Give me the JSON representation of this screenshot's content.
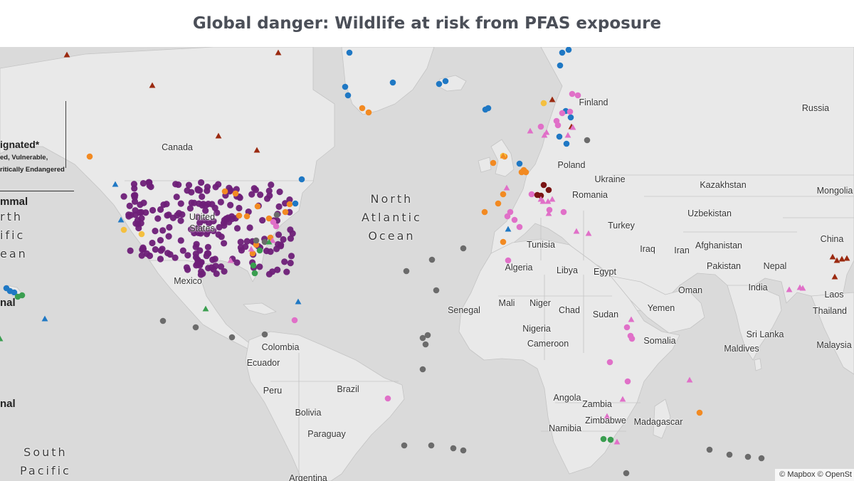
{
  "title": "Global danger: Wildlife at risk from PFAS exposure",
  "legend": {
    "line1": "ignated*",
    "line2": "ed, Vulnerable,",
    "line3": "ritically Endangered"
  },
  "side_labels": [
    "mmal",
    "nal",
    "nal"
  ],
  "attribution": "© Mapbox © OpenSt",
  "colors": {
    "land": "#e9e9e9",
    "water": "#dadada",
    "border": "#c4c4c4",
    "purple": "#6e1f78",
    "orange": "#f28a22",
    "blue": "#1f78c4",
    "pink": "#e070c8",
    "green": "#3a9e50",
    "darkred": "#9b2a10",
    "gray": "#6b6b6b",
    "yellow": "#f4c040",
    "maroon": "#7a1414",
    "teal": "#4fa39a"
  },
  "labels": {
    "canada": "Canada",
    "us_a": "United",
    "us_b": "States",
    "mexico": "Mexico",
    "finland": "Finland",
    "russia": "Russia",
    "poland": "Poland",
    "ukraine": "Ukraine",
    "romania": "Romania",
    "turkey": "Turkey",
    "kazakhstan": "Kazakhstan",
    "mongolia": "Mongolia",
    "uzbekistan": "Uzbekistan",
    "china": "China",
    "afghanistan": "Afghanistan",
    "iraq": "Iraq",
    "iran": "Iran",
    "pakistan": "Pakistan",
    "nepal": "Nepal",
    "tunisia": "Tunisia",
    "algeria": "Algeria",
    "libya": "Libya",
    "egypt": "Egypt",
    "oman": "Oman",
    "india": "India",
    "laos": "Laos",
    "thailand": "Thailand",
    "mali": "Mali",
    "niger": "Niger",
    "chad": "Chad",
    "sudan": "Sudan",
    "yemen": "Yemen",
    "senegal": "Senegal",
    "nigeria": "Nigeria",
    "somalia": "Somalia",
    "srilanka": "Sri Lanka",
    "maldives": "Maldives",
    "malaysia": "Malaysia",
    "cameroon": "Cameroon",
    "colombia": "Colombia",
    "ecuador": "Ecuador",
    "brazil": "Brazil",
    "peru": "Peru",
    "bolivia": "Bolivia",
    "paraguay": "Paraguay",
    "argentina": "Argentina",
    "angola": "Angola",
    "zambia": "Zambia",
    "zimbabwe": "Zimbabwe",
    "namibia": "Namibia",
    "madagascar": "Madagascar"
  },
  "oceans": {
    "north_atlantic": [
      "North",
      "Atlantic",
      "Ocean"
    ],
    "north_pacific": [
      "rth",
      "ific",
      "ean"
    ],
    "south_pacific": [
      "South",
      "Pacific"
    ]
  },
  "markers": {
    "purple": [],
    "orange": [],
    "blue": [],
    "pink": [],
    "green": [],
    "gray": [],
    "yellow": [],
    "maroon": [],
    "triangles_darkred": [],
    "triangles_pink": [],
    "triangles_blue": [],
    "triangles_green": [],
    "triangles_orange": []
  }
}
